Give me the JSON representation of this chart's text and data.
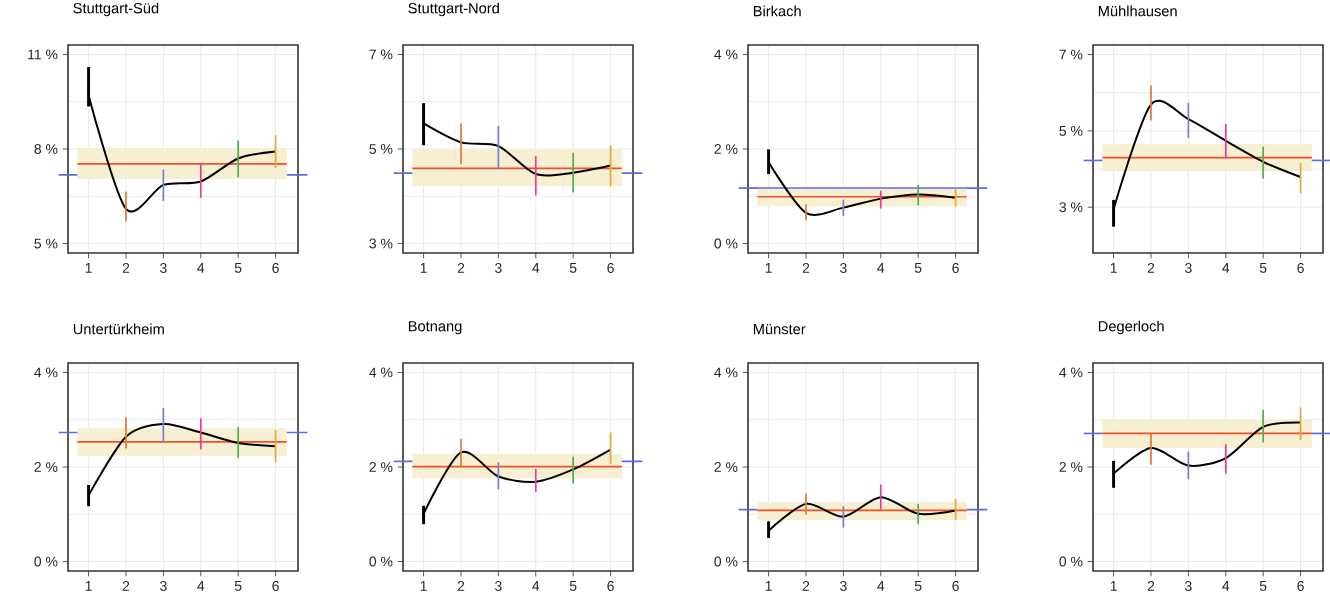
{
  "chart_data": [
    {
      "type": "line",
      "title": "Stuttgart-Süd",
      "x": [
        1,
        2,
        3,
        4,
        5,
        6
      ],
      "xlim": [
        0.45,
        6.6
      ],
      "xticks": [
        1,
        2,
        3,
        4,
        5,
        6
      ],
      "ylim": [
        4.7,
        11.3
      ],
      "yticks": [
        {
          "value": 5,
          "label": "5 %"
        },
        {
          "value": 8,
          "label": "8 %"
        },
        {
          "value": 11,
          "label": "11 %"
        }
      ],
      "grid": true,
      "series": [
        {
          "color": "#000000",
          "colors": [
            "#000000",
            "#e07b39",
            "#7b7fd4",
            "#e0409a",
            "#4caf50",
            "#e3a83a"
          ],
          "values": [
            9.7,
            6.1,
            6.86,
            6.97,
            7.7,
            7.92
          ],
          "errors": [
            [
              9.35,
              10.6
            ],
            [
              5.7,
              6.65
            ],
            [
              6.35,
              7.35
            ],
            [
              6.45,
              7.53
            ],
            [
              7.1,
              8.27
            ],
            [
              7.39,
              8.44
            ]
          ]
        }
      ],
      "bands": [
        {
          "axis": "y",
          "from": 7.05,
          "to": 8.03,
          "color": "#f7efd2"
        }
      ],
      "ref_lines": [
        {
          "axis": "y",
          "value": 7.18,
          "color": "#5b6ee1"
        },
        {
          "axis": "y",
          "value": 7.53,
          "color": "#f0502a"
        }
      ]
    },
    {
      "type": "line",
      "title": "Stuttgart-Nord",
      "x": [
        1,
        2,
        3,
        4,
        5,
        6
      ],
      "xlim": [
        0.45,
        6.6
      ],
      "xticks": [
        1,
        2,
        3,
        4,
        5,
        6
      ],
      "ylim": [
        2.8,
        7.2
      ],
      "yticks": [
        {
          "value": 3,
          "label": "3 %"
        },
        {
          "value": 5,
          "label": "5 %"
        },
        {
          "value": 7,
          "label": "7 %"
        }
      ],
      "grid": true,
      "series": [
        {
          "color": "#000000",
          "colors": [
            "#000000",
            "#e07b39",
            "#7b7fd4",
            "#e0409a",
            "#4caf50",
            "#e3a83a"
          ],
          "values": [
            5.54,
            5.14,
            5.06,
            4.47,
            4.5,
            4.65
          ],
          "errors": [
            [
              5.08,
              5.97
            ],
            [
              4.68,
              5.54
            ],
            [
              4.58,
              5.49
            ],
            [
              4.02,
              4.85
            ],
            [
              4.08,
              4.92
            ],
            [
              4.21,
              5.07
            ]
          ]
        }
      ],
      "bands": [
        {
          "axis": "y",
          "from": 4.21,
          "to": 5.0,
          "color": "#f7efd2"
        }
      ],
      "ref_lines": [
        {
          "axis": "y",
          "value": 4.49,
          "color": "#5b6ee1"
        },
        {
          "axis": "y",
          "value": 4.59,
          "color": "#f0502a"
        }
      ]
    },
    {
      "type": "line",
      "title": "Birkach",
      "x": [
        1,
        2,
        3,
        4,
        5,
        6
      ],
      "xlim": [
        0.45,
        6.6
      ],
      "xticks": [
        1,
        2,
        3,
        4,
        5,
        6
      ],
      "ylim": [
        -0.2,
        4.2
      ],
      "yticks": [
        {
          "value": 0,
          "label": "0 %"
        },
        {
          "value": 2,
          "label": "2 %"
        },
        {
          "value": 4,
          "label": "4 %"
        }
      ],
      "grid": true,
      "series": [
        {
          "color": "#000000",
          "colors": [
            "#000000",
            "#e07b39",
            "#7b7fd4",
            "#e0409a",
            "#4caf50",
            "#e3a83a"
          ],
          "values": [
            1.72,
            0.65,
            0.76,
            0.95,
            1.04,
            0.97
          ],
          "errors": [
            [
              1.47,
              1.99
            ],
            [
              0.49,
              0.83
            ],
            [
              0.58,
              0.93
            ],
            [
              0.74,
              1.12
            ],
            [
              0.81,
              1.24
            ],
            [
              0.78,
              1.16
            ]
          ]
        }
      ],
      "bands": [
        {
          "axis": "y",
          "from": 0.79,
          "to": 1.16,
          "color": "#f7efd2"
        }
      ],
      "ref_lines": [
        {
          "axis": "y",
          "value": 1.17,
          "color": "#5b6ee1"
        },
        {
          "axis": "y",
          "value": 0.99,
          "color": "#f0502a"
        }
      ]
    },
    {
      "type": "line",
      "title": "Mühlhausen",
      "x": [
        1,
        2,
        3,
        4,
        5,
        6
      ],
      "xlim": [
        0.45,
        6.6
      ],
      "xticks": [
        1,
        2,
        3,
        4,
        5,
        6
      ],
      "ylim": [
        1.8,
        7.25
      ],
      "yticks": [
        {
          "value": 3,
          "label": "3 %"
        },
        {
          "value": 5,
          "label": "5 %"
        },
        {
          "value": 7,
          "label": "7 %"
        }
      ],
      "grid": true,
      "series": [
        {
          "color": "#000000",
          "colors": [
            "#000000",
            "#e07b39",
            "#7b7fd4",
            "#e0409a",
            "#4caf50",
            "#e3a83a"
          ],
          "values": [
            2.95,
            5.69,
            5.31,
            4.74,
            4.19,
            3.79
          ],
          "errors": [
            [
              2.49,
              3.19
            ],
            [
              5.27,
              6.19
            ],
            [
              4.81,
              5.73
            ],
            [
              4.28,
              5.18
            ],
            [
              3.75,
              4.59
            ],
            [
              3.37,
              4.16
            ]
          ]
        }
      ],
      "bands": [
        {
          "axis": "y",
          "from": 3.94,
          "to": 4.66,
          "color": "#f7efd2"
        }
      ],
      "ref_lines": [
        {
          "axis": "y",
          "value": 4.23,
          "color": "#5b6ee1"
        },
        {
          "axis": "y",
          "value": 4.3,
          "color": "#f0502a"
        }
      ]
    },
    {
      "type": "line",
      "title": "Untertürkheim",
      "x": [
        1,
        2,
        3,
        4,
        5,
        6
      ],
      "xlim": [
        0.45,
        6.6
      ],
      "xticks": [
        1,
        2,
        3,
        4,
        5,
        6
      ],
      "ylim": [
        -0.2,
        4.2
      ],
      "yticks": [
        {
          "value": 0,
          "label": "0 %"
        },
        {
          "value": 2,
          "label": "2 %"
        },
        {
          "value": 4,
          "label": "4 %"
        }
      ],
      "grid": true,
      "series": [
        {
          "color": "#000000",
          "colors": [
            "#000000",
            "#e07b39",
            "#7b7fd4",
            "#e0409a",
            "#4caf50",
            "#e3a83a"
          ],
          "values": [
            1.4,
            2.64,
            2.91,
            2.73,
            2.51,
            2.44
          ],
          "errors": [
            [
              1.17,
              1.62
            ],
            [
              2.39,
              3.05
            ],
            [
              2.51,
              3.25
            ],
            [
              2.37,
              3.03
            ],
            [
              2.19,
              2.84
            ],
            [
              2.1,
              2.78
            ]
          ]
        }
      ],
      "bands": [
        {
          "axis": "y",
          "from": 2.24,
          "to": 2.82,
          "color": "#f7efd2"
        }
      ],
      "ref_lines": [
        {
          "axis": "y",
          "value": 2.73,
          "color": "#5b6ee1"
        },
        {
          "axis": "y",
          "value": 2.53,
          "color": "#f0502a"
        }
      ]
    },
    {
      "type": "line",
      "title": "Botnang",
      "x": [
        1,
        2,
        3,
        4,
        5,
        6
      ],
      "xlim": [
        0.45,
        6.6
      ],
      "xticks": [
        1,
        2,
        3,
        4,
        5,
        6
      ],
      "ylim": [
        -0.2,
        4.2
      ],
      "yticks": [
        {
          "value": 0,
          "label": "0 %"
        },
        {
          "value": 2,
          "label": "2 %"
        },
        {
          "value": 4,
          "label": "4 %"
        }
      ],
      "grid": true,
      "series": [
        {
          "color": "#000000",
          "colors": [
            "#000000",
            "#e07b39",
            "#7b7fd4",
            "#e0409a",
            "#4caf50",
            "#e3a83a"
          ],
          "values": [
            1.01,
            2.31,
            1.8,
            1.69,
            1.95,
            2.37
          ],
          "errors": [
            [
              0.79,
              1.18
            ],
            [
              2.01,
              2.6
            ],
            [
              1.53,
              2.1
            ],
            [
              1.47,
              1.96
            ],
            [
              1.65,
              2.22
            ],
            [
              2.07,
              2.73
            ]
          ]
        }
      ],
      "bands": [
        {
          "axis": "y",
          "from": 1.76,
          "to": 2.28,
          "color": "#f7efd2"
        }
      ],
      "ref_lines": [
        {
          "axis": "y",
          "value": 2.12,
          "color": "#5b6ee1"
        },
        {
          "axis": "y",
          "value": 2.01,
          "color": "#f0502a"
        }
      ]
    },
    {
      "type": "line",
      "title": "Münster",
      "x": [
        1,
        2,
        3,
        4,
        5,
        6
      ],
      "xlim": [
        0.45,
        6.6
      ],
      "xticks": [
        1,
        2,
        3,
        4,
        5,
        6
      ],
      "ylim": [
        -0.2,
        4.2
      ],
      "yticks": [
        {
          "value": 0,
          "label": "0 %"
        },
        {
          "value": 2,
          "label": "2 %"
        },
        {
          "value": 4,
          "label": "4 %"
        }
      ],
      "grid": true,
      "series": [
        {
          "color": "#000000",
          "colors": [
            "#000000",
            "#e07b39",
            "#7b7fd4",
            "#e0409a",
            "#4caf50",
            "#e3a83a"
          ],
          "values": [
            0.65,
            1.22,
            0.95,
            1.36,
            1.01,
            1.08
          ],
          "errors": [
            [
              0.5,
              0.85
            ],
            [
              0.99,
              1.44
            ],
            [
              0.72,
              1.17
            ],
            [
              1.1,
              1.63
            ],
            [
              0.79,
              1.22
            ],
            [
              0.88,
              1.33
            ]
          ]
        }
      ],
      "bands": [
        {
          "axis": "y",
          "from": 0.88,
          "to": 1.26,
          "color": "#f7efd2"
        }
      ],
      "ref_lines": [
        {
          "axis": "y",
          "value": 1.1,
          "color": "#5b6ee1"
        },
        {
          "axis": "y",
          "value": 1.08,
          "color": "#f0502a"
        }
      ]
    },
    {
      "type": "line",
      "title": "Degerloch",
      "x": [
        1,
        2,
        3,
        4,
        5,
        6
      ],
      "xlim": [
        0.45,
        6.6
      ],
      "xticks": [
        1,
        2,
        3,
        4,
        5,
        6
      ],
      "ylim": [
        -0.2,
        4.2
      ],
      "yticks": [
        {
          "value": 0,
          "label": "0 %"
        },
        {
          "value": 2,
          "label": "2 %"
        },
        {
          "value": 4,
          "label": "4 %"
        }
      ],
      "grid": true,
      "series": [
        {
          "color": "#000000",
          "colors": [
            "#000000",
            "#e07b39",
            "#7b7fd4",
            "#e0409a",
            "#4caf50",
            "#e3a83a"
          ],
          "values": [
            1.86,
            2.4,
            2.03,
            2.19,
            2.85,
            2.94
          ],
          "errors": [
            [
              1.56,
              2.13
            ],
            [
              2.05,
              2.71
            ],
            [
              1.74,
              2.33
            ],
            [
              1.86,
              2.48
            ],
            [
              2.52,
              3.21
            ],
            [
              2.57,
              3.26
            ]
          ]
        }
      ],
      "bands": [
        {
          "axis": "y",
          "from": 2.4,
          "to": 3.0,
          "color": "#f7efd2"
        }
      ],
      "ref_lines": [
        {
          "axis": "y",
          "value": 2.71,
          "color": "#5b6ee1"
        },
        {
          "axis": "y",
          "value": 2.71,
          "color": "#f0502a"
        }
      ]
    }
  ]
}
